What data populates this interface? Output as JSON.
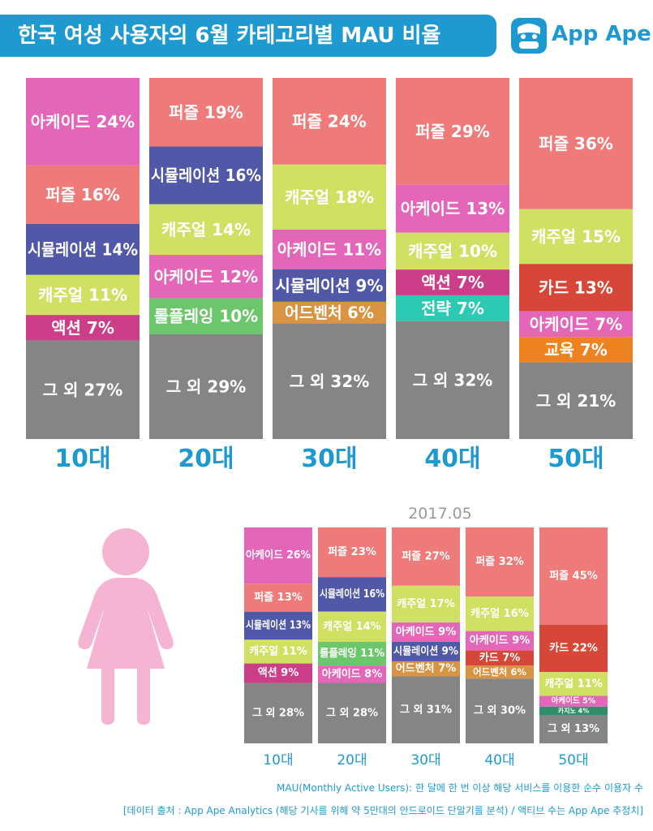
{
  "header": {
    "title": "한국 여성 사용자의 6월 카테고리별 MAU 비율",
    "logo_text": "App Ape"
  },
  "colors": {
    "퍼즐": "#ee7a7a",
    "아케이드": "#e366b8",
    "시뮬레이션": "#5158a7",
    "캐주얼": "#cfe063",
    "액션": "#cc3e87",
    "롤플레잉": "#6cc66b",
    "어드벤처": "#d89443",
    "전략": "#2cc9b3",
    "카드": "#d6473a",
    "교육": "#ee8120",
    "카지노": "#2f8f6a",
    "그 외": "#858585",
    "accent": "#1f9ad1"
  },
  "chart_data": [
    {
      "type": "bar",
      "stacked": true,
      "period": "2017.06",
      "categories": [
        "10대",
        "20대",
        "30대",
        "40대",
        "50대"
      ],
      "segments": [
        [
          {
            "name": "아케이드",
            "value": 24
          },
          {
            "name": "퍼즐",
            "value": 16
          },
          {
            "name": "시뮬레이션",
            "value": 14
          },
          {
            "name": "캐주얼",
            "value": 11
          },
          {
            "name": "액션",
            "value": 7
          },
          {
            "name": "그 외",
            "value": 27
          }
        ],
        [
          {
            "name": "퍼즐",
            "value": 19
          },
          {
            "name": "시뮬레이션",
            "value": 16
          },
          {
            "name": "캐주얼",
            "value": 14
          },
          {
            "name": "아케이드",
            "value": 12
          },
          {
            "name": "롤플레잉",
            "value": 10
          },
          {
            "name": "그 외",
            "value": 29
          }
        ],
        [
          {
            "name": "퍼즐",
            "value": 24
          },
          {
            "name": "캐주얼",
            "value": 18
          },
          {
            "name": "아케이드",
            "value": 11
          },
          {
            "name": "시뮬레이션",
            "value": 9
          },
          {
            "name": "어드벤처",
            "value": 6
          },
          {
            "name": "그 외",
            "value": 32
          }
        ],
        [
          {
            "name": "퍼즐",
            "value": 29
          },
          {
            "name": "아케이드",
            "value": 13
          },
          {
            "name": "캐주얼",
            "value": 10
          },
          {
            "name": "액션",
            "value": 7
          },
          {
            "name": "전략",
            "value": 7
          },
          {
            "name": "그 외",
            "value": 32
          }
        ],
        [
          {
            "name": "퍼즐",
            "value": 36
          },
          {
            "name": "캐주얼",
            "value": 15
          },
          {
            "name": "카드",
            "value": 13
          },
          {
            "name": "아케이드",
            "value": 7
          },
          {
            "name": "교육",
            "value": 7
          },
          {
            "name": "그 외",
            "value": 21
          }
        ]
      ]
    },
    {
      "type": "bar",
      "stacked": true,
      "period": "2017.05",
      "title": "2017.05",
      "categories": [
        "10대",
        "20대",
        "30대",
        "40대",
        "50대"
      ],
      "segments": [
        [
          {
            "name": "아케이드",
            "value": 26
          },
          {
            "name": "퍼즐",
            "value": 13
          },
          {
            "name": "시뮬레이션",
            "value": 13
          },
          {
            "name": "캐주얼",
            "value": 11
          },
          {
            "name": "액션",
            "value": 9
          },
          {
            "name": "그 외",
            "value": 28
          }
        ],
        [
          {
            "name": "퍼즐",
            "value": 23
          },
          {
            "name": "시뮬레이션",
            "value": 16
          },
          {
            "name": "캐주얼",
            "value": 14
          },
          {
            "name": "롤플레잉",
            "value": 11
          },
          {
            "name": "아케이드",
            "value": 8
          },
          {
            "name": "그 외",
            "value": 28
          }
        ],
        [
          {
            "name": "퍼즐",
            "value": 27
          },
          {
            "name": "캐주얼",
            "value": 17
          },
          {
            "name": "아케이드",
            "value": 9
          },
          {
            "name": "시뮬레이션",
            "value": 9
          },
          {
            "name": "어드벤처",
            "value": 7
          },
          {
            "name": "그 외",
            "value": 31
          }
        ],
        [
          {
            "name": "퍼즐",
            "value": 32
          },
          {
            "name": "캐주얼",
            "value": 16
          },
          {
            "name": "아케이드",
            "value": 9
          },
          {
            "name": "카드",
            "value": 7
          },
          {
            "name": "어드벤처",
            "value": 6
          },
          {
            "name": "그 외",
            "value": 30
          }
        ],
        [
          {
            "name": "퍼즐",
            "value": 45
          },
          {
            "name": "카드",
            "value": 22
          },
          {
            "name": "캐주얼",
            "value": 11
          },
          {
            "name": "아케이드",
            "value": 5
          },
          {
            "name": "카지노",
            "value": 4
          },
          {
            "name": "그 외",
            "value": 13
          }
        ]
      ]
    }
  ],
  "footer": {
    "line1": "MAU(Monthly Active Users): 한 달에 한 번 이상 해당 서비스를 이용한 순수 이용자 수",
    "line2": "[데이터 출처 : App Ape Analytics (해당 기사를 위해 약 5만대의 안드로이드 단말기를 분석) / 액티브 수는 App Ape 추정치]"
  }
}
